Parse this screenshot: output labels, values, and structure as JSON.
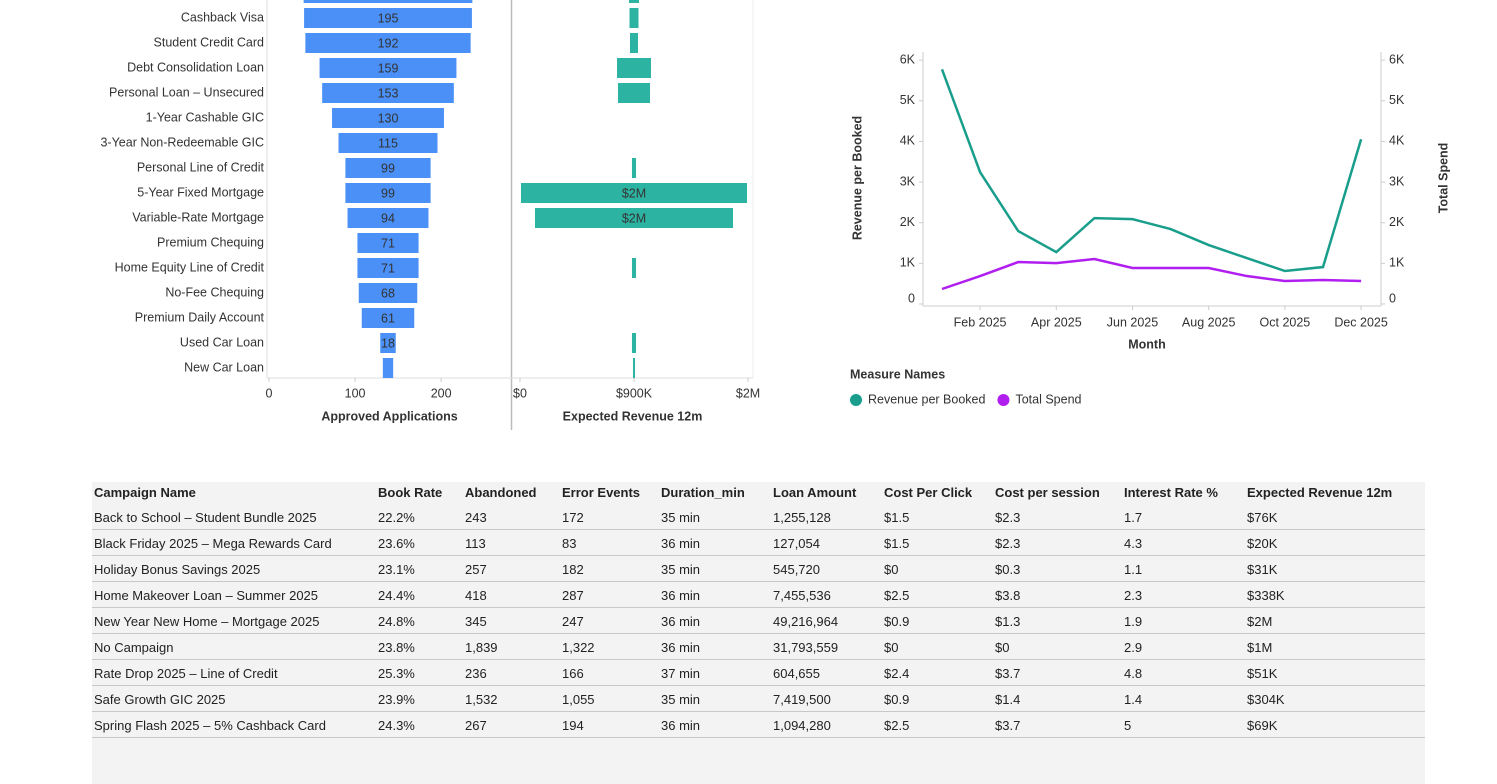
{
  "chart_data": [
    {
      "type": "bar",
      "xlabel": "Approved Applications",
      "color": "#4a90f7",
      "categories": [
        null,
        "Cashback Visa",
        "Student Credit Card",
        "Debt Consolidation Loan",
        "Personal Loan – Unsecured",
        "1-Year Cashable GIC",
        "3-Year Non-Redeemable GIC",
        "Personal Line of Credit",
        "5-Year Fixed Mortgage",
        "Variable-Rate Mortgage",
        "Premium Chequing",
        "Home Equity Line of Credit",
        "No-Fee Chequing",
        "Premium Daily Account",
        "Used Car Loan",
        "New Car Loan"
      ],
      "values": [
        196,
        195,
        192,
        159,
        153,
        130,
        115,
        99,
        99,
        94,
        71,
        71,
        68,
        61,
        18,
        12
      ],
      "value_labels": [
        null,
        "195",
        "192",
        "159",
        "153",
        "130",
        "115",
        "99",
        "99",
        "94",
        "71",
        "71",
        "68",
        "61",
        "18",
        null
      ],
      "xlim": [
        0,
        280
      ],
      "xticks": [
        0,
        100,
        200
      ]
    },
    {
      "type": "bar",
      "xlabel": "Expected Revenue 12m",
      "color": "#2db3a2",
      "values": [
        79000,
        71000,
        63000,
        268000,
        253000,
        0,
        0,
        32000,
        1784000,
        1563000,
        0,
        32000,
        0,
        0,
        32000,
        16000
      ],
      "value_labels": [
        null,
        null,
        null,
        null,
        null,
        null,
        null,
        null,
        "$2M",
        "$2M",
        null,
        null,
        null,
        null,
        null,
        null
      ],
      "xlim": [
        -63000,
        1839000
      ],
      "xticks": [
        {
          "value": 0,
          "label": "$0"
        },
        {
          "value": 900000,
          "label": "$900K"
        },
        {
          "value": 1800000,
          "label": "$2M"
        }
      ]
    },
    {
      "type": "line",
      "xlabel": "Month",
      "ylabel": "Revenue per Booked",
      "y2label": "Total Spend",
      "legend_title": "Measure Names",
      "x": [
        "2025-01",
        "2025-02",
        "2025-03",
        "2025-04",
        "2025-05",
        "2025-06",
        "2025-07",
        "2025-08",
        "2025-09",
        "2025-10",
        "2025-11",
        "2025-12"
      ],
      "xticks": [
        {
          "value": "2025-02",
          "label": "Feb 2025"
        },
        {
          "value": "2025-04",
          "label": "Apr 2025"
        },
        {
          "value": "2025-06",
          "label": "Jun 2025"
        },
        {
          "value": "2025-08",
          "label": "Aug 2025"
        },
        {
          "value": "2025-10",
          "label": "Oct 2025"
        },
        {
          "value": "2025-12",
          "label": "Dec 2025"
        }
      ],
      "ylim": [
        0,
        6200
      ],
      "yticks": [
        0,
        {
          "value": 1000,
          "label": "1K"
        },
        {
          "value": 2000,
          "label": "2K"
        },
        {
          "value": 3000,
          "label": "3K"
        },
        {
          "value": 4000,
          "label": "4K"
        },
        {
          "value": 5000,
          "label": "5K"
        },
        {
          "value": 6000,
          "label": "6K"
        }
      ],
      "y2lim": [
        0,
        6200
      ],
      "y2ticks": [
        0,
        {
          "value": 1000,
          "label": "1K"
        },
        {
          "value": 2000,
          "label": "2K"
        },
        {
          "value": 3000,
          "label": "3K"
        },
        {
          "value": 4000,
          "label": "4K"
        },
        {
          "value": 5000,
          "label": "5K"
        },
        {
          "value": 6000,
          "label": "6K"
        }
      ],
      "series": [
        {
          "name": "Revenue per Booked",
          "color": "#1a9e8c",
          "values": [
            5774,
            3243,
            1794,
            1278,
            2113,
            2088,
            1843,
            1450,
            1130,
            811,
            909,
            4054
          ]
        },
        {
          "name": "Total Spend",
          "color": "#b01ef0",
          "axis": "y2",
          "values": [
            369,
            688,
            1032,
            1007,
            1106,
            885,
            885,
            885,
            688,
            565,
            590,
            565
          ]
        }
      ]
    }
  ],
  "table": {
    "columns": [
      "Campaign Name",
      "Book Rate",
      "Abandoned",
      "Error Events",
      "Duration_min",
      "Loan Amount",
      "Cost Per Click",
      "Cost per session",
      "Interest Rate %",
      "Expected Revenue 12m"
    ],
    "rows": [
      [
        "Back to School – Student Bundle 2025",
        "22.2%",
        "243",
        "172",
        "35 min",
        "1,255,128",
        "$1.5",
        "$2.3",
        "1.7",
        "$76K"
      ],
      [
        "Black Friday 2025 – Mega Rewards Card",
        "23.6%",
        "113",
        "83",
        "36 min",
        "127,054",
        "$1.5",
        "$2.3",
        "4.3",
        "$20K"
      ],
      [
        "Holiday Bonus Savings 2025",
        "23.1%",
        "257",
        "182",
        "35 min",
        "545,720",
        "$0",
        "$0.3",
        "1.1",
        "$31K"
      ],
      [
        "Home Makeover Loan – Summer 2025",
        "24.4%",
        "418",
        "287",
        "36 min",
        "7,455,536",
        "$2.5",
        "$3.8",
        "2.3",
        "$338K"
      ],
      [
        "New Year New Home – Mortgage 2025",
        "24.8%",
        "345",
        "247",
        "36 min",
        "49,216,964",
        "$0.9",
        "$1.3",
        "1.9",
        "$2M"
      ],
      [
        "No Campaign",
        "23.8%",
        "1,839",
        "1,322",
        "36 min",
        "31,793,559",
        "$0",
        "$0",
        "2.9",
        "$1M"
      ],
      [
        "Rate Drop 2025 – Line of Credit",
        "25.3%",
        "236",
        "166",
        "37 min",
        "604,655",
        "$2.4",
        "$3.7",
        "4.8",
        "$51K"
      ],
      [
        "Safe Growth GIC 2025",
        "23.9%",
        "1,532",
        "1,055",
        "35 min",
        "7,419,500",
        "$0.9",
        "$1.4",
        "1.4",
        "$304K"
      ],
      [
        "Spring Flash 2025 – 5% Cashback Card",
        "24.3%",
        "267",
        "194",
        "36 min",
        "1,094,280",
        "$2.5",
        "$3.7",
        "5",
        "$69K"
      ]
    ]
  }
}
